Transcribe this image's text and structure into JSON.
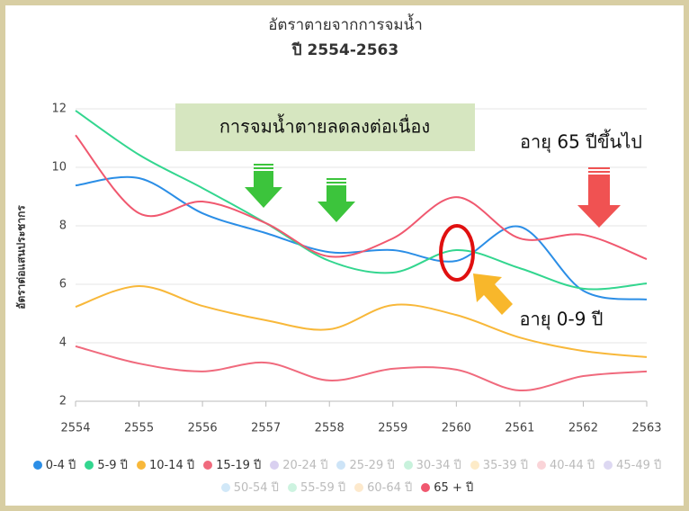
{
  "chart_data": {
    "type": "line",
    "title": "อัตราตายจากการจมน้ำ",
    "subtitle": "ปี 2554-2563",
    "y_label": "อัตราต่อแสนประชากร",
    "categories": [
      "2554",
      "2555",
      "2556",
      "2557",
      "2558",
      "2559",
      "2560",
      "2561",
      "2562",
      "2563"
    ],
    "ylim": [
      2,
      12
    ],
    "yticks": [
      2,
      4,
      6,
      8,
      10,
      12
    ],
    "grid": true,
    "smooth": true,
    "series": [
      {
        "name": "0-4 ปี",
        "color": "#2b8ee6",
        "values": [
          9.38,
          9.63,
          8.43,
          7.75,
          7.1,
          7.17,
          6.8,
          7.97,
          5.78,
          5.48
        ]
      },
      {
        "name": "5-9 ปี",
        "color": "#33d68f",
        "values": [
          11.94,
          10.43,
          9.29,
          8.09,
          6.8,
          6.4,
          7.17,
          6.55,
          5.85,
          6.03
        ]
      },
      {
        "name": "10-14 ปี",
        "color": "#f8b83a",
        "values": [
          5.23,
          5.94,
          5.26,
          4.77,
          4.46,
          5.29,
          4.95,
          4.18,
          3.72,
          3.51
        ]
      },
      {
        "name": "15-19 ปี",
        "color": "#f06a7d",
        "values": [
          3.88,
          3.29,
          3.02,
          3.32,
          2.71,
          3.11,
          3.08,
          2.37,
          2.86,
          3.02
        ]
      },
      {
        "name": "20-24 ปี",
        "color": "#d9d0f0",
        "hidden": true
      },
      {
        "name": "25-29 ปี",
        "color": "#cde4f7",
        "hidden": true
      },
      {
        "name": "30-34 ปี",
        "color": "#c8f2dc",
        "hidden": true
      },
      {
        "name": "35-39 ปี",
        "color": "#fdebc8",
        "hidden": true
      },
      {
        "name": "40-44 ปี",
        "color": "#fad4d8",
        "hidden": true
      },
      {
        "name": "45-49 ปี",
        "color": "#ddd8f2",
        "hidden": true
      },
      {
        "name": "50-54 ปี",
        "color": "#d1e8f8",
        "hidden": true
      },
      {
        "name": "55-59 ปี",
        "color": "#cdf3e0",
        "hidden": true
      },
      {
        "name": "60-64 ปี",
        "color": "#fde9cc",
        "hidden": true
      },
      {
        "name": "65 + ปี",
        "color": "#f0586f",
        "values": [
          11.1,
          8.43,
          8.83,
          8.09,
          6.95,
          7.57,
          8.98,
          7.57,
          7.69,
          6.86
        ]
      }
    ],
    "annotations": [
      "การจมน้ำตายลดลงต่อเนื่อง",
      "อายุ 65 ปีขึ้นไป",
      "อายุ 0-9 ปี"
    ]
  }
}
